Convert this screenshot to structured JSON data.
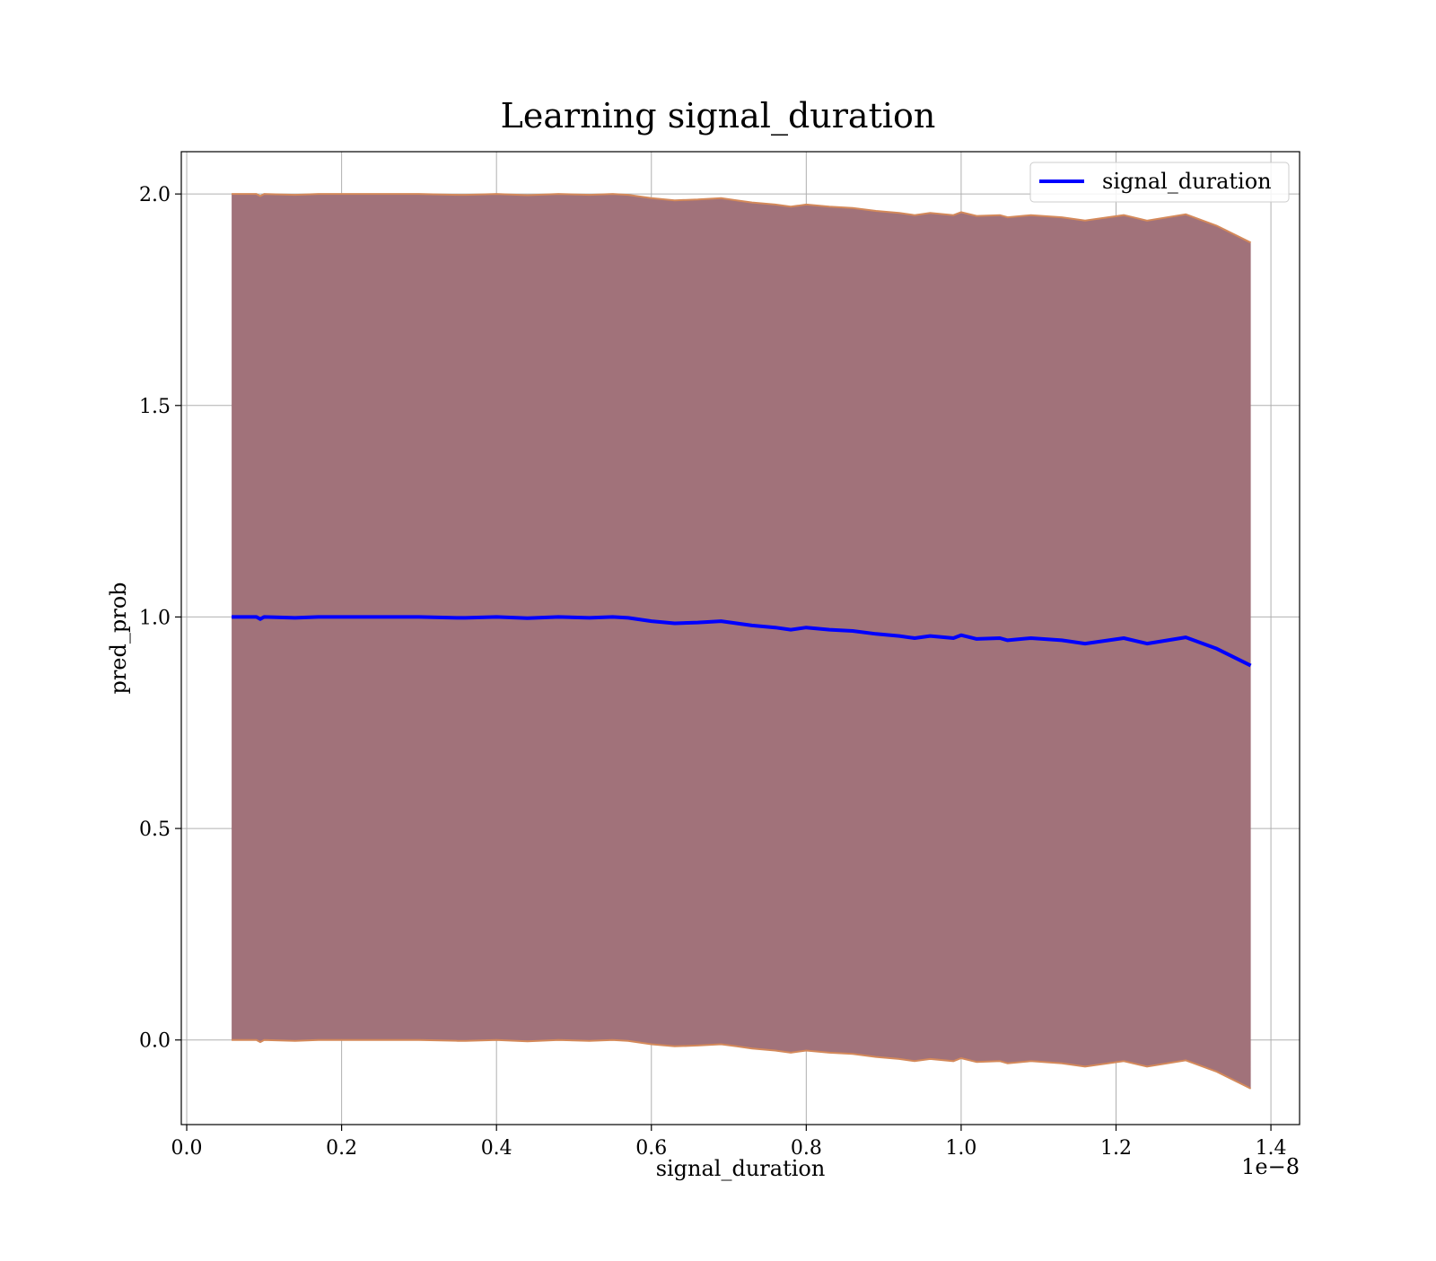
{
  "chart_data": {
    "type": "line",
    "title": "Learning signal_duration",
    "xlabel": "signal_duration",
    "ylabel": "pred_prob",
    "x_offset_label": "1e−8",
    "xlim": [
      -0.007,
      1.437
    ],
    "ylim": [
      -0.2,
      2.1
    ],
    "x_ticks": [
      0.0,
      0.2,
      0.4,
      0.6,
      0.8,
      1.0,
      1.2,
      1.4
    ],
    "x_tick_labels": [
      "0.0",
      "0.2",
      "0.4",
      "0.6",
      "0.8",
      "1.0",
      "1.2",
      "1.4"
    ],
    "y_ticks": [
      0.0,
      0.5,
      1.0,
      1.5,
      2.0
    ],
    "y_tick_labels": [
      "0.0",
      "0.5",
      "1.0",
      "1.5",
      "2.0"
    ],
    "grid": true,
    "legend_position": "top-right",
    "colors": {
      "line": "#0000ff",
      "band_fill": "#a1727a",
      "band_edge": "#d4895a",
      "grid": "#b0b0b0"
    },
    "series": [
      {
        "name": "signal_duration",
        "x": [
          0.058,
          0.09,
          0.095,
          0.1,
          0.14,
          0.17,
          0.2,
          0.24,
          0.3,
          0.35,
          0.36,
          0.4,
          0.44,
          0.48,
          0.52,
          0.55,
          0.57,
          0.6,
          0.63,
          0.66,
          0.69,
          0.71,
          0.73,
          0.76,
          0.78,
          0.8,
          0.83,
          0.86,
          0.89,
          0.92,
          0.94,
          0.96,
          0.99,
          1.0,
          1.02,
          1.05,
          1.06,
          1.09,
          1.13,
          1.16,
          1.21,
          1.24,
          1.29,
          1.33,
          1.374
        ],
        "y": [
          1.0,
          1.0,
          0.995,
          1.0,
          0.998,
          1.0,
          1.0,
          1.0,
          1.0,
          0.998,
          0.998,
          1.0,
          0.997,
          1.0,
          0.998,
          1.0,
          0.998,
          0.99,
          0.985,
          0.987,
          0.99,
          0.985,
          0.98,
          0.975,
          0.97,
          0.975,
          0.97,
          0.967,
          0.96,
          0.955,
          0.95,
          0.955,
          0.95,
          0.957,
          0.948,
          0.95,
          0.945,
          0.95,
          0.945,
          0.937,
          0.95,
          0.937,
          0.952,
          0.925,
          0.885
        ],
        "upper": [
          2.0,
          2.0,
          1.995,
          2.0,
          1.998,
          2.0,
          2.0,
          2.0,
          2.0,
          1.998,
          1.998,
          2.0,
          1.997,
          2.0,
          1.998,
          2.0,
          1.998,
          1.99,
          1.985,
          1.987,
          1.99,
          1.985,
          1.98,
          1.975,
          1.97,
          1.975,
          1.97,
          1.967,
          1.96,
          1.955,
          1.95,
          1.955,
          1.95,
          1.957,
          1.948,
          1.95,
          1.945,
          1.95,
          1.945,
          1.937,
          1.95,
          1.937,
          1.952,
          1.925,
          1.885
        ],
        "lower": [
          0.0,
          0.0,
          -0.005,
          0.0,
          -0.002,
          0.0,
          0.0,
          0.0,
          0.0,
          -0.002,
          -0.002,
          0.0,
          -0.003,
          0.0,
          -0.002,
          0.0,
          -0.002,
          -0.01,
          -0.015,
          -0.013,
          -0.01,
          -0.015,
          -0.02,
          -0.025,
          -0.03,
          -0.025,
          -0.03,
          -0.033,
          -0.04,
          -0.045,
          -0.05,
          -0.045,
          -0.05,
          -0.043,
          -0.052,
          -0.05,
          -0.055,
          -0.05,
          -0.055,
          -0.063,
          -0.05,
          -0.063,
          -0.048,
          -0.075,
          -0.115
        ]
      }
    ]
  }
}
